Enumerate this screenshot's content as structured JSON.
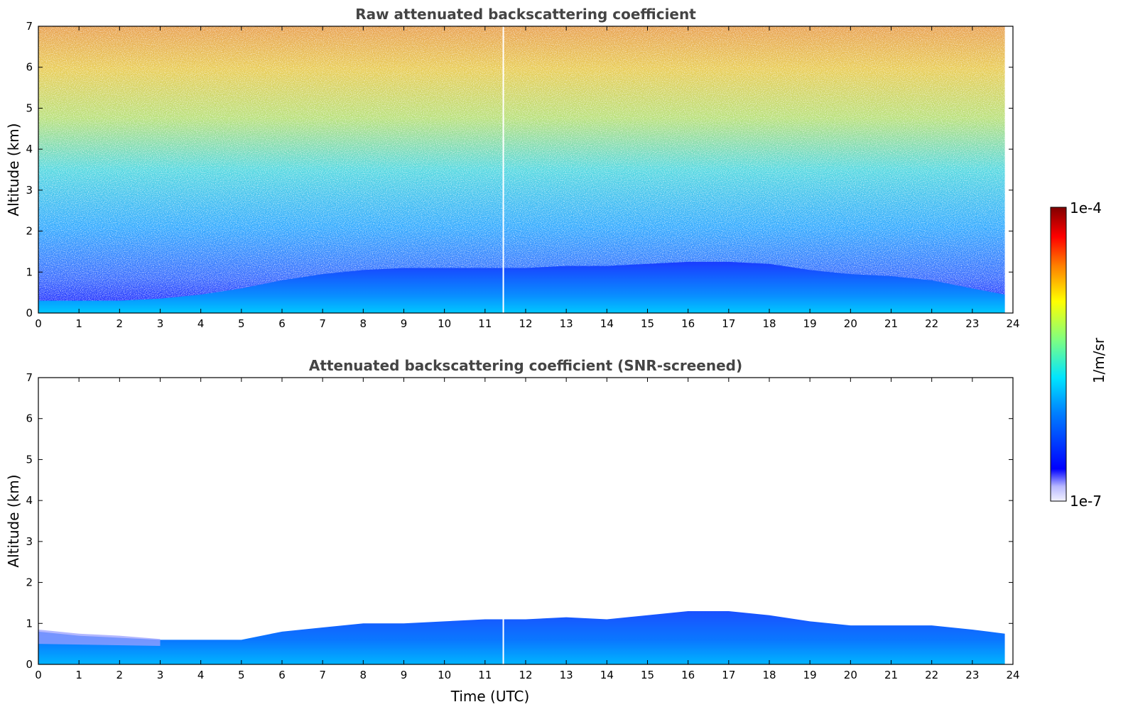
{
  "chart_data": [
    {
      "type": "heatmap",
      "title": "Raw attenuated backscattering coefficient",
      "xlabel": "",
      "ylabel": "Altitude (km)",
      "xlim": [
        0,
        24
      ],
      "ylim": [
        0,
        7
      ],
      "xticks": [
        "0",
        "1",
        "2",
        "3",
        "4",
        "5",
        "6",
        "7",
        "8",
        "9",
        "10",
        "11",
        "12",
        "13",
        "14",
        "15",
        "16",
        "17",
        "18",
        "19",
        "20",
        "21",
        "22",
        "23",
        "24"
      ],
      "yticks": [
        "0",
        "1",
        "2",
        "3",
        "4",
        "5",
        "6",
        "7"
      ],
      "data_end_x": 23.8,
      "gap_x": 11.45,
      "layer_top_km": [
        [
          0,
          0.3
        ],
        [
          1,
          0.3
        ],
        [
          2,
          0.3
        ],
        [
          3,
          0.35
        ],
        [
          4,
          0.45
        ],
        [
          5,
          0.6
        ],
        [
          6,
          0.8
        ],
        [
          7,
          0.95
        ],
        [
          8,
          1.05
        ],
        [
          9,
          1.1
        ],
        [
          10,
          1.1
        ],
        [
          11,
          1.1
        ],
        [
          12,
          1.1
        ],
        [
          13,
          1.15
        ],
        [
          14,
          1.15
        ],
        [
          15,
          1.2
        ],
        [
          16,
          1.25
        ],
        [
          17,
          1.25
        ],
        [
          18,
          1.2
        ],
        [
          19,
          1.05
        ],
        [
          20,
          0.95
        ],
        [
          21,
          0.9
        ],
        [
          22,
          0.8
        ],
        [
          23,
          0.6
        ],
        [
          23.8,
          0.45
        ]
      ]
    },
    {
      "type": "heatmap",
      "title": "Attenuated backscattering coefficient (SNR-screened)",
      "xlabel": "Time (UTC)",
      "ylabel": "Altitude (km)",
      "xlim": [
        0,
        24
      ],
      "ylim": [
        0,
        7
      ],
      "xticks": [
        "0",
        "1",
        "2",
        "3",
        "4",
        "5",
        "6",
        "7",
        "8",
        "9",
        "10",
        "11",
        "12",
        "13",
        "14",
        "15",
        "16",
        "17",
        "18",
        "19",
        "20",
        "21",
        "22",
        "23",
        "24"
      ],
      "yticks": [
        "0",
        "1",
        "2",
        "3",
        "4",
        "5",
        "6",
        "7"
      ],
      "data_end_x": 23.8,
      "gap_x": 11.45,
      "layer_top_km": [
        [
          0,
          0.8
        ],
        [
          1,
          0.7
        ],
        [
          2,
          0.65
        ],
        [
          3,
          0.6
        ],
        [
          4,
          0.6
        ],
        [
          5,
          0.6
        ],
        [
          6,
          0.8
        ],
        [
          7,
          0.9
        ],
        [
          8,
          1.0
        ],
        [
          9,
          1.0
        ],
        [
          10,
          1.05
        ],
        [
          11,
          1.1
        ],
        [
          12,
          1.1
        ],
        [
          13,
          1.15
        ],
        [
          14,
          1.1
        ],
        [
          15,
          1.2
        ],
        [
          16,
          1.3
        ],
        [
          17,
          1.3
        ],
        [
          18,
          1.2
        ],
        [
          19,
          1.05
        ],
        [
          20,
          0.95
        ],
        [
          21,
          0.95
        ],
        [
          22,
          0.95
        ],
        [
          23,
          0.85
        ],
        [
          23.8,
          0.75
        ]
      ]
    }
  ],
  "colorbar": {
    "label": "1/m/sr",
    "max_label": "1e-4",
    "min_label": "1e-7",
    "colormap": "jet-white-low",
    "colors": [
      "#f2f2ff",
      "#c8c8ff",
      "#0000ff",
      "#0080ff",
      "#00e5ff",
      "#80ff80",
      "#ffff00",
      "#ff8000",
      "#ff0000",
      "#800000"
    ]
  }
}
